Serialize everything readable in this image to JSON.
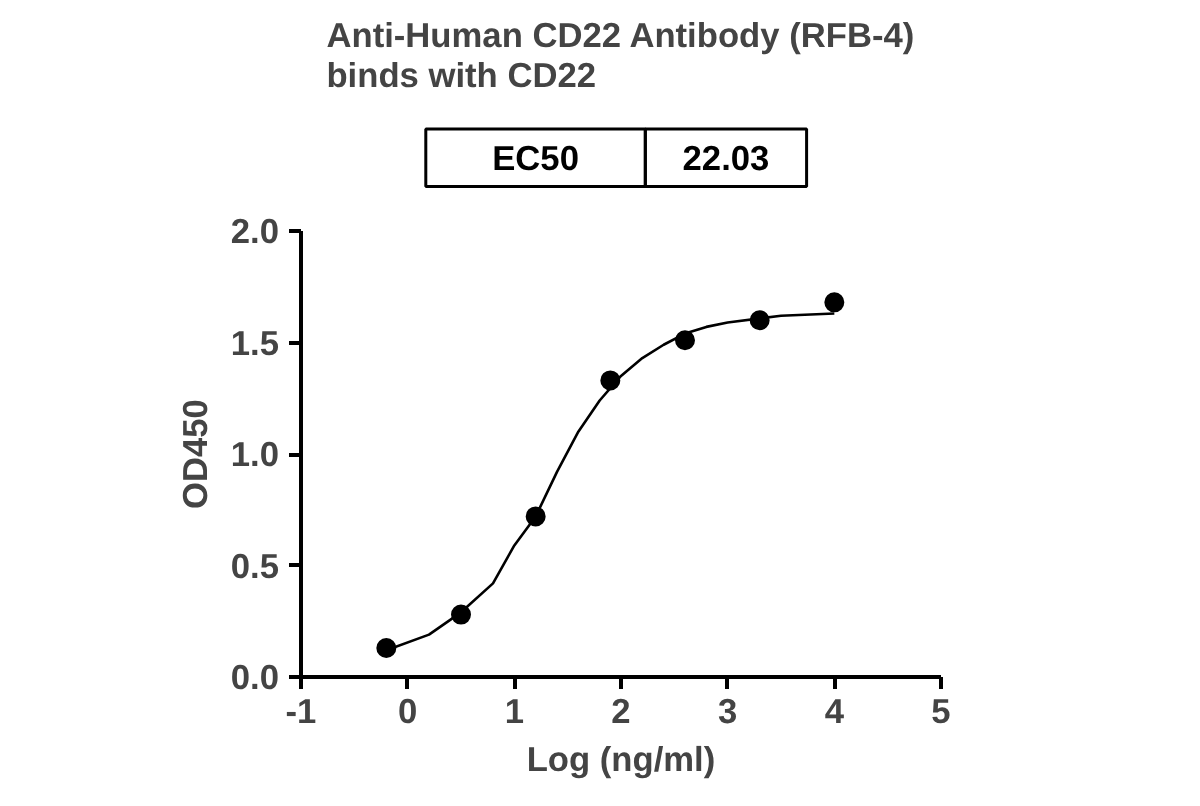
{
  "chart_data": {
    "type": "scatter",
    "title": "Anti-Human CD22 Antibody (RFB-4)\nbinds with CD22",
    "xlabel": "Log (ng/ml)",
    "ylabel": "OD450",
    "annotations": [
      "EC50",
      "22.03"
    ],
    "xlim": [
      -1,
      5
    ],
    "ylim": [
      0,
      2
    ],
    "xticks": [
      -1,
      0,
      1,
      2,
      3,
      4,
      5
    ],
    "yticks": [
      {
        "value": 0,
        "label": "0.0"
      },
      {
        "value": 0.5,
        "label": "0.5"
      },
      {
        "value": 1,
        "label": "1.0"
      },
      {
        "value": 1.5,
        "label": "1.5"
      },
      {
        "value": 2,
        "label": "2.0"
      }
    ],
    "grid": false,
    "series": [
      {
        "marker": "circle",
        "color": "#000000",
        "x": [
          -0.2,
          0.5,
          1.2,
          1.9,
          2.6,
          3.3,
          4.0
        ],
        "values": [
          0.13,
          0.28,
          0.72,
          1.33,
          1.51,
          1.6,
          1.68
        ]
      },
      {
        "type": "line",
        "color": "#000000",
        "line_style": "solid",
        "x": [
          -0.2,
          0.2,
          0.5,
          0.8,
          1.0,
          1.2,
          1.4,
          1.6,
          1.8,
          2.0,
          2.2,
          2.4,
          2.6,
          2.8,
          3.0,
          3.5,
          4.0
        ],
        "values": [
          0.12,
          0.19,
          0.29,
          0.42,
          0.59,
          0.72,
          0.92,
          1.1,
          1.24,
          1.35,
          1.43,
          1.49,
          1.54,
          1.57,
          1.59,
          1.62,
          1.63
        ]
      }
    ]
  }
}
